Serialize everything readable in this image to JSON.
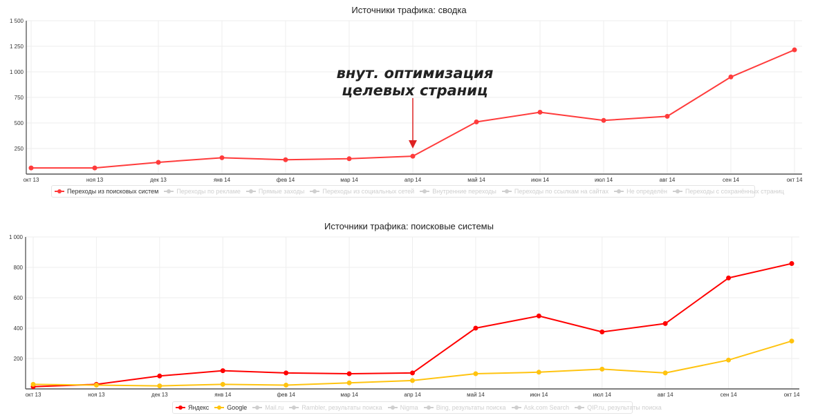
{
  "charts": {
    "top": {
      "title": "Источники трафика: сводка",
      "annotation": {
        "line1": "внут. оптимизация",
        "line2": "целевых страниц",
        "target_category": "апр 14"
      },
      "legend": [
        {
          "label": "Переходы из поисковых систем",
          "color": "#ff3b3b",
          "active": true
        },
        {
          "label": "Переходы по рекламе",
          "color": "#cfcfcf",
          "active": false
        },
        {
          "label": "Прямые заходы",
          "color": "#cfcfcf",
          "active": false
        },
        {
          "label": "Переходы из социальных сетей",
          "color": "#cfcfcf",
          "active": false
        },
        {
          "label": "Внутренние переходы",
          "color": "#cfcfcf",
          "active": false
        },
        {
          "label": "Переходы по ссылкам на сайтах",
          "color": "#cfcfcf",
          "active": false
        },
        {
          "label": "Не определён",
          "color": "#cfcfcf",
          "active": false
        },
        {
          "label": "Переходы с сохранённых страниц",
          "color": "#cfcfcf",
          "active": false
        }
      ]
    },
    "bottom": {
      "title": "Источники трафика: поисковые системы",
      "legend": [
        {
          "label": "Яндекс",
          "color": "#ff0000",
          "active": true
        },
        {
          "label": "Google",
          "color": "#ffc30f",
          "active": true
        },
        {
          "label": "Mail.ru",
          "color": "#cfcfcf",
          "active": false
        },
        {
          "label": "Rambler, результаты поиска",
          "color": "#cfcfcf",
          "active": false
        },
        {
          "label": "Nigma",
          "color": "#cfcfcf",
          "active": false
        },
        {
          "label": "Bing, результаты поиска",
          "color": "#cfcfcf",
          "active": false
        },
        {
          "label": "Ask.com Search",
          "color": "#cfcfcf",
          "active": false
        },
        {
          "label": "QIP.ru, результаты поиска",
          "color": "#cfcfcf",
          "active": false
        }
      ]
    }
  },
  "chart_data": [
    {
      "type": "line",
      "title": "Источники трафика: сводка",
      "xlabel": "",
      "ylabel": "",
      "categories": [
        "окт 13",
        "ноя 13",
        "дек 13",
        "янв 14",
        "фев 14",
        "мар 14",
        "апр 14",
        "май 14",
        "июн 14",
        "июл 14",
        "авг 14",
        "сен 14",
        "окт 14"
      ],
      "yticks": [
        250,
        500,
        750,
        1000,
        1250,
        1500
      ],
      "ytick_labels": [
        "250",
        "500",
        "750",
        "1 000",
        "1 250",
        "1 500"
      ],
      "ylim": [
        0,
        1500
      ],
      "grid": true,
      "legend_position": "bottom",
      "series": [
        {
          "name": "Переходы из поисковых систем",
          "color": "#ff3b3b",
          "values": [
            60,
            60,
            115,
            160,
            140,
            150,
            175,
            510,
            605,
            525,
            565,
            950,
            1215
          ]
        }
      ],
      "annotations": [
        {
          "text": "внут. оптимизация целевых страниц",
          "x": "апр 14",
          "arrow": true
        }
      ]
    },
    {
      "type": "line",
      "title": "Источники трафика: поисковые системы",
      "xlabel": "",
      "ylabel": "",
      "categories": [
        "окт 13",
        "ноя 13",
        "дек 13",
        "янв 14",
        "фев 14",
        "мар 14",
        "апр 14",
        "май 14",
        "июн 14",
        "июл 14",
        "авг 14",
        "сен 14",
        "окт 14"
      ],
      "yticks": [
        200,
        400,
        600,
        800,
        1000
      ],
      "ytick_labels": [
        "200",
        "400",
        "600",
        "800",
        "1 000"
      ],
      "ylim": [
        0,
        1000
      ],
      "grid": true,
      "legend_position": "bottom",
      "series": [
        {
          "name": "Яндекс",
          "color": "#ff0000",
          "values": [
            15,
            30,
            85,
            120,
            105,
            100,
            105,
            400,
            480,
            375,
            430,
            730,
            825
          ]
        },
        {
          "name": "Google",
          "color": "#ffc30f",
          "values": [
            30,
            25,
            20,
            30,
            25,
            40,
            55,
            100,
            110,
            130,
            105,
            190,
            315
          ]
        }
      ]
    }
  ]
}
